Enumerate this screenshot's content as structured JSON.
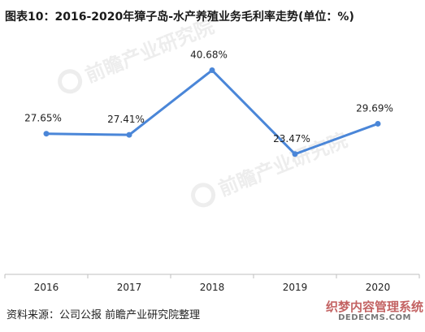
{
  "title": "图表10：2016-2020年獐子岛-水产养殖业务毛利率走势(单位：%)",
  "source": "资料来源：公司公报 前瞻产业研究院整理",
  "watermark": {
    "logo_text": "前瞻产业研究院",
    "footer_line1": "织梦内容管理系统",
    "footer_line2": "DEDECMS.COM"
  },
  "colors": {
    "series": "#4a86d8",
    "axis": "#bfbfbf",
    "text": "#222222"
  },
  "chart_data": {
    "type": "line",
    "title": "图表10：2016-2020年獐子岛-水产养殖业务毛利率走势(单位：%)",
    "categories": [
      "2016",
      "2017",
      "2018",
      "2019",
      "2020"
    ],
    "series": [
      {
        "values": [
          27.65,
          27.41,
          40.68,
          23.47,
          29.69
        ],
        "labels": [
          "27.65%",
          "27.41%",
          "40.68%",
          "23.47%",
          "29.69%"
        ]
      }
    ],
    "grid": false,
    "legend": "none"
  }
}
